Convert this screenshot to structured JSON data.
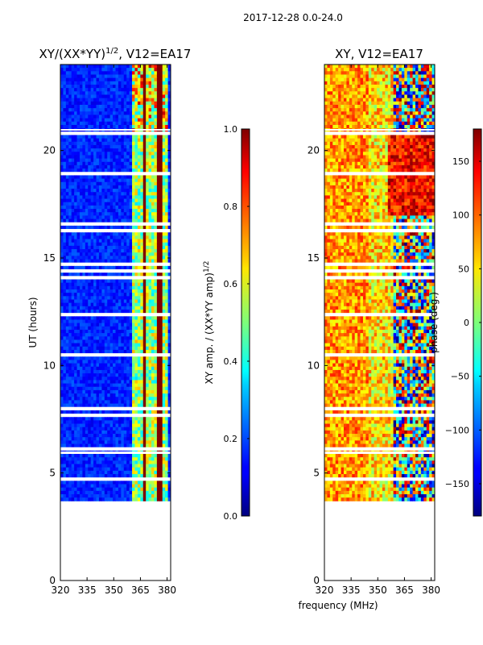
{
  "suptitle": "2017-12-28 0.0-24.0",
  "xlabel": "frequency (MHz)",
  "colors": {
    "frame": "#000000",
    "gap": "#ffffff"
  },
  "chart_data": [
    {
      "type": "heatmap",
      "title": "XY/(XX*YY)^1/2, V12=EA17",
      "title_main": "XY/(XX*YY)",
      "title_sup": "1/2",
      "title_tail": ", V12=EA17",
      "ylabel": "UT (hours)",
      "xlim": [
        320,
        382
      ],
      "ylim": [
        0,
        24
      ],
      "xticks": [
        "320",
        "335",
        "350",
        "365",
        "380"
      ],
      "xtick_values": [
        320,
        335,
        350,
        365,
        380
      ],
      "yticks": [
        "0",
        "5",
        "10",
        "15",
        "20"
      ],
      "ytick_values": [
        0,
        5,
        10,
        15,
        20
      ],
      "data_range_hours": [
        3.7,
        24
      ],
      "colormap": "jet",
      "colorbar": {
        "label": "XY amp. / (XX*YY amp)^1/2",
        "label_main": "XY amp. / (XX*YY amp)",
        "label_sup": "1/2",
        "range": [
          0.0,
          1.0
        ],
        "ticks": [
          "0.0",
          "0.2",
          "0.4",
          "0.6",
          "0.8",
          "1.0"
        ],
        "tick_values": [
          0.0,
          0.2,
          0.4,
          0.6,
          0.8,
          1.0
        ]
      }
    },
    {
      "type": "heatmap",
      "title": "XY, V12=EA17",
      "xlim": [
        320,
        382
      ],
      "ylim": [
        0,
        24
      ],
      "xticks": [
        "320",
        "335",
        "350",
        "365",
        "380"
      ],
      "xtick_values": [
        320,
        335,
        350,
        365,
        380
      ],
      "yticks": [
        "0",
        "5",
        "10",
        "15",
        "20"
      ],
      "ytick_values": [
        0,
        5,
        10,
        15,
        20
      ],
      "data_range_hours": [
        3.7,
        24
      ],
      "colormap": "jet",
      "colorbar": {
        "label": "phase (deg.)",
        "range": [
          -180,
          180
        ],
        "ticks": [
          "−150",
          "−100",
          "−50",
          "0",
          "50",
          "100",
          "150"
        ],
        "tick_values": [
          -150,
          -100,
          -50,
          0,
          50,
          100,
          150
        ]
      }
    }
  ]
}
